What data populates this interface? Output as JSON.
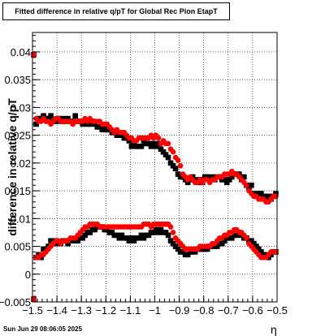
{
  "chart_data": {
    "type": "scatter",
    "title": "Fitted difference in relative q/pT for Global Rec Pion EtapT",
    "xlabel": "η",
    "ylabel": "difference in relative q/pT",
    "xlim": [
      -1.5,
      -0.5
    ],
    "ylim": [
      -0.005,
      0.0435
    ],
    "grid": true,
    "x_ticks": [
      "−1.5",
      "−1.4",
      "−1.3",
      "−1.2",
      "−1.1",
      "−1",
      "−0.9",
      "−0.8",
      "−0.7",
      "−0.6",
      "−0.5"
    ],
    "y_ticks": [
      "−0.005",
      "0",
      "0.005",
      "0.01",
      "0.015",
      "0.02",
      "0.025",
      "0.03",
      "0.035",
      "0.04"
    ],
    "colors": {
      "black_series": "#000000",
      "red_series": "#ff0000"
    },
    "series": [
      {
        "color": "black",
        "x": [
          -1.495,
          -1.485,
          -1.475,
          -1.465,
          -1.455,
          -1.445,
          -1.435,
          -1.425,
          -1.415,
          -1.405,
          -1.395,
          -1.385,
          -1.375,
          -1.365,
          -1.355,
          -1.345,
          -1.335,
          -1.325,
          -1.315,
          -1.305,
          -1.295,
          -1.285,
          -1.275,
          -1.265,
          -1.255,
          -1.245,
          -1.235,
          -1.225,
          -1.215,
          -1.205,
          -1.195,
          -1.185,
          -1.175,
          -1.165,
          -1.155,
          -1.145,
          -1.135,
          -1.125,
          -1.115,
          -1.105,
          -1.095,
          -1.085,
          -1.075,
          -1.065,
          -1.055,
          -1.045,
          -1.035,
          -1.025,
          -1.015,
          -1.005,
          -0.995,
          -0.985,
          -0.975,
          -0.965,
          -0.955,
          -0.945,
          -0.935,
          -0.925,
          -0.915,
          -0.905,
          -0.895,
          -0.885,
          -0.875,
          -0.865,
          -0.855,
          -0.845,
          -0.835,
          -0.825,
          -0.815,
          -0.805,
          -0.795,
          -0.785,
          -0.775,
          -0.765,
          -0.755,
          -0.745,
          -0.735,
          -0.725,
          -0.715,
          -0.705,
          -0.695,
          -0.685,
          -0.675,
          -0.665,
          -0.655,
          -0.645,
          -0.635,
          -0.625,
          -0.615,
          -0.605,
          -0.595,
          -0.585,
          -0.575,
          -0.565,
          -0.555,
          -0.545,
          -0.535,
          -0.525,
          -0.515,
          -0.505
        ],
        "groups": [
          [
            0.0395,
            0.027,
            0.028,
            0.028,
            0.0285,
            0.028,
            0.028,
            0.0285,
            0.0275,
            0.0275,
            0.028,
            0.0275,
            0.028,
            0.0275,
            0.028,
            0.0275,
            0.0275,
            0.0285,
            0.0275,
            0.0275,
            0.027,
            0.0275,
            0.027,
            0.027,
            0.0275,
            0.027,
            0.0265,
            0.0265,
            0.026,
            0.0265,
            0.026,
            0.026,
            0.0255,
            0.0255,
            0.025,
            0.025,
            0.025,
            0.0245,
            0.0245,
            0.024,
            0.023,
            0.0235,
            0.023,
            0.023,
            0.023,
            0.024,
            0.0235,
            0.0235,
            0.023,
            0.0235,
            0.023,
            0.0235,
            0.0225,
            0.022,
            0.0215,
            0.021,
            0.02,
            0.0195,
            0.019,
            0.018,
            0.0175,
            0.0175,
            0.017,
            0.0165,
            0.017,
            0.0175,
            0.017,
            0.0165,
            0.017,
            0.0165,
            0.0175,
            0.0175,
            0.017,
            0.0175,
            0.017,
            0.0175,
            0.0175,
            0.017,
            0.017,
            0.0165,
            0.017,
            0.0175,
            0.018,
            0.018,
            0.018,
            0.017,
            0.0175,
            0.016,
            0.0155,
            0.016,
            0.0145,
            0.014,
            0.0145,
            0.0145,
            0.014,
            0.0135,
            0.014,
            0.0135,
            0.014,
            0.0145
          ],
          [
            -0.0045,
            0.003,
            0.0035,
            0.003,
            0.0045,
            0.0045,
            0.005,
            0.006,
            0.0055,
            0.006,
            0.0055,
            0.0055,
            0.006,
            0.006,
            0.0055,
            0.006,
            0.006,
            0.006,
            0.006,
            0.0065,
            0.0065,
            0.007,
            0.0075,
            0.0075,
            0.008,
            0.008,
            0.0085,
            0.0085,
            0.0085,
            0.008,
            0.008,
            0.0075,
            0.0075,
            0.007,
            0.007,
            0.0065,
            0.007,
            0.0065,
            0.0065,
            0.006,
            0.0065,
            0.006,
            0.0065,
            0.0065,
            0.007,
            0.0065,
            0.007,
            0.007,
            0.0075,
            0.0075,
            0.008,
            0.0075,
            0.008,
            0.0075,
            0.0075,
            0.007,
            0.006,
            0.0055,
            0.005,
            0.0045,
            0.004,
            0.004,
            0.0035,
            0.0035,
            0.004,
            0.004,
            0.004,
            0.0045,
            0.0045,
            0.0045,
            0.0045,
            0.0045,
            0.005,
            0.005,
            0.005,
            0.005,
            0.0055,
            0.0055,
            0.006,
            0.0065,
            0.0065,
            0.0065,
            0.007,
            0.007,
            0.0075,
            0.007,
            0.0065,
            0.0065,
            0.006,
            0.006,
            0.0055,
            0.005,
            0.0045,
            0.004,
            0.0035,
            0.0035,
            0.003,
            0.0035,
            0.004,
            0.004
          ]
        ]
      },
      {
        "color": "red",
        "x": [
          -1.495,
          -1.485,
          -1.475,
          -1.465,
          -1.455,
          -1.445,
          -1.435,
          -1.425,
          -1.415,
          -1.405,
          -1.395,
          -1.385,
          -1.375,
          -1.365,
          -1.355,
          -1.345,
          -1.335,
          -1.325,
          -1.315,
          -1.305,
          -1.295,
          -1.285,
          -1.275,
          -1.265,
          -1.255,
          -1.245,
          -1.235,
          -1.225,
          -1.215,
          -1.205,
          -1.195,
          -1.185,
          -1.175,
          -1.165,
          -1.155,
          -1.145,
          -1.135,
          -1.125,
          -1.115,
          -1.105,
          -1.095,
          -1.085,
          -1.075,
          -1.065,
          -1.055,
          -1.045,
          -1.035,
          -1.025,
          -1.015,
          -1.005,
          -0.995,
          -0.985,
          -0.975,
          -0.965,
          -0.955,
          -0.945,
          -0.935,
          -0.925,
          -0.915,
          -0.905,
          -0.895,
          -0.885,
          -0.875,
          -0.865,
          -0.855,
          -0.845,
          -0.835,
          -0.825,
          -0.815,
          -0.805,
          -0.795,
          -0.785,
          -0.775,
          -0.765,
          -0.755,
          -0.745,
          -0.735,
          -0.725,
          -0.715,
          -0.705,
          -0.695,
          -0.685,
          -0.675,
          -0.665,
          -0.655,
          -0.645,
          -0.635,
          -0.625,
          -0.615,
          -0.605,
          -0.595,
          -0.585,
          -0.575,
          -0.565,
          -0.555,
          -0.545,
          -0.535,
          -0.525,
          -0.515,
          -0.505
        ],
        "groups": [
          [
            0.0395,
            0.028,
            0.0275,
            0.0275,
            0.028,
            0.0275,
            0.0275,
            0.027,
            0.0275,
            0.028,
            0.028,
            0.0275,
            0.0275,
            0.0275,
            0.0275,
            0.0275,
            0.027,
            0.0275,
            0.0275,
            0.0275,
            0.0275,
            0.028,
            0.0275,
            0.028,
            0.0275,
            0.0275,
            0.0275,
            0.0275,
            0.027,
            0.027,
            0.027,
            0.0265,
            0.026,
            0.0255,
            0.026,
            0.0255,
            0.0255,
            0.0255,
            0.025,
            0.0245,
            0.0245,
            0.024,
            0.024,
            0.0245,
            0.0245,
            0.0245,
            0.0245,
            0.0245,
            0.025,
            0.0245,
            0.025,
            0.0245,
            0.0235,
            0.024,
            0.0235,
            0.0235,
            0.0225,
            0.022,
            0.021,
            0.0205,
            0.0195,
            0.018,
            0.0175,
            0.017,
            0.0175,
            0.017,
            0.0165,
            0.0165,
            0.017,
            0.0165,
            0.017,
            0.017,
            0.0165,
            0.017,
            0.017,
            0.0175,
            0.0175,
            0.0175,
            0.018,
            0.018,
            0.018,
            0.0185,
            0.018,
            0.018,
            0.0175,
            0.017,
            0.0165,
            0.016,
            0.015,
            0.0145,
            0.014,
            0.014,
            0.0135,
            0.0135,
            0.0135,
            0.013,
            0.013,
            0.0135,
            0.014,
            0.014
          ],
          [
            -0.0045,
            0.003,
            0.003,
            0.0035,
            0.0035,
            0.004,
            0.0045,
            0.005,
            0.0055,
            0.006,
            0.006,
            0.0055,
            0.006,
            0.006,
            0.006,
            0.0065,
            0.0065,
            0.0065,
            0.007,
            0.0075,
            0.008,
            0.0085,
            0.0085,
            0.009,
            0.009,
            0.009,
            0.009,
            0.0085,
            0.0085,
            0.0085,
            0.0085,
            0.0085,
            0.0085,
            0.0085,
            0.0085,
            0.0085,
            0.0085,
            0.0085,
            0.0085,
            0.0085,
            0.0085,
            0.0085,
            0.0085,
            0.0085,
            0.0085,
            0.009,
            0.009,
            0.009,
            0.0085,
            0.009,
            0.009,
            0.009,
            0.009,
            0.009,
            0.009,
            0.009,
            0.0085,
            0.0075,
            0.0065,
            0.006,
            0.0055,
            0.005,
            0.0045,
            0.0045,
            0.0045,
            0.0045,
            0.0045,
            0.0045,
            0.005,
            0.005,
            0.005,
            0.005,
            0.005,
            0.0055,
            0.0055,
            0.006,
            0.0065,
            0.0065,
            0.007,
            0.007,
            0.0075,
            0.0075,
            0.008,
            0.008,
            0.0075,
            0.0075,
            0.007,
            0.0065,
            0.0055,
            0.005,
            0.0045,
            0.004,
            0.0035,
            0.003,
            0.003,
            0.003,
            0.0035,
            0.004,
            0.004,
            0.004
          ]
        ]
      }
    ]
  },
  "footer": {
    "date": "Sun Jun 29 08:06:05 2025"
  }
}
